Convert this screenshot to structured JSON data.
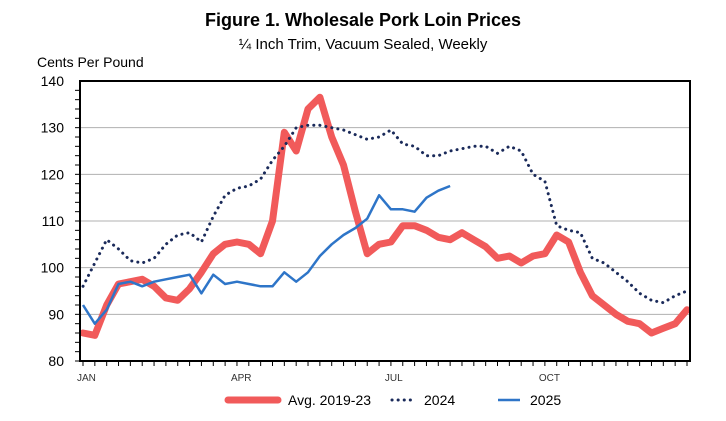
{
  "chart_data": {
    "type": "line",
    "title": "Figure 1. Wholesale Pork Loin Prices",
    "subtitle": "¼ Inch Trim, Vacuum Sealed, Weekly",
    "ylabel": "Cents Per Pound",
    "xlabel": "",
    "ylim": [
      80,
      140
    ],
    "yticks": [
      80,
      90,
      100,
      110,
      120,
      130,
      140
    ],
    "x_unit": "week of year",
    "xlim": [
      1,
      52
    ],
    "month_labels": [
      {
        "label": "JAN",
        "week": 1
      },
      {
        "label": "APR",
        "week": 14
      },
      {
        "label": "JUL",
        "week": 27
      },
      {
        "label": "OCT",
        "week": 40
      }
    ],
    "grid": true,
    "legend_position": "bottom",
    "series": [
      {
        "name": "Avg. 2019-23",
        "color": "#f15a5a",
        "style": "thick-solid",
        "values": [
          86,
          85.5,
          92,
          96.5,
          97,
          97.5,
          96,
          93.5,
          93,
          95.5,
          99,
          103,
          105,
          105.5,
          105,
          103,
          110,
          129,
          125,
          134,
          136.5,
          128,
          122,
          112,
          103,
          105,
          105.5,
          109,
          109,
          108,
          106.5,
          106,
          107.5,
          106,
          104.5,
          102,
          102.5,
          101,
          102.5,
          103,
          107,
          105.5,
          99,
          94,
          92,
          90,
          88.5,
          88,
          86,
          87,
          88,
          91
        ]
      },
      {
        "name": "2024",
        "color": "#1a2a5a",
        "style": "dotted",
        "values": [
          96,
          101,
          106,
          104,
          101.5,
          101,
          102,
          105,
          107,
          107.5,
          105.5,
          111,
          115.5,
          117,
          117.5,
          119,
          123,
          126,
          130,
          130.5,
          130.5,
          130,
          129.5,
          128.5,
          127.5,
          128,
          129.5,
          126.5,
          126,
          124,
          124,
          125,
          125.5,
          126,
          126,
          124.5,
          126,
          125,
          120,
          118.5,
          109,
          108,
          107.5,
          102,
          101,
          99,
          97,
          94.5,
          93,
          92.5,
          94,
          95
        ]
      },
      {
        "name": "2025",
        "color": "#2e75c8",
        "style": "solid",
        "values": [
          92,
          88,
          91,
          96.5,
          97,
          96,
          97,
          97.5,
          98,
          98.5,
          94.5,
          98.5,
          96.5,
          97,
          96.5,
          96,
          96,
          99,
          97,
          99,
          102.5,
          105,
          107,
          108.5,
          110.5,
          115.5,
          112.5,
          112.5,
          112,
          115,
          116.5,
          117.5
        ]
      }
    ]
  }
}
